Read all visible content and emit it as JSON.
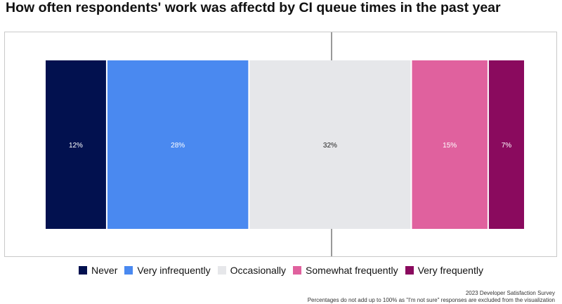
{
  "chart_data": {
    "type": "bar",
    "orientation": "horizontal-stacked",
    "title": "How often respondents' work was affectd by CI queue times in the past year",
    "categories": [
      "Never",
      "Very infrequently",
      "Occasionally",
      "Somewhat frequently",
      "Very frequently"
    ],
    "series": [
      {
        "name": "Never",
        "value": 12,
        "label": "12%",
        "color": "#02114f"
      },
      {
        "name": "Very infrequently",
        "value": 28,
        "label": "28%",
        "color": "#4a89f0"
      },
      {
        "name": "Occasionally",
        "value": 32,
        "label": "32%",
        "color": "#e6e7ea"
      },
      {
        "name": "Somewhat frequently",
        "value": 15,
        "label": "15%",
        "color": "#e0619e"
      },
      {
        "name": "Very frequently",
        "value": 7,
        "label": "7%",
        "color": "#8a0a5e"
      }
    ],
    "legend_position": "bottom",
    "grid": false
  },
  "footer": {
    "source": "2023 Developer Satisfaction Survey",
    "note": "Percentages do not add up to 100% as \"I'm not sure\" responses are excluded from the visualization"
  }
}
